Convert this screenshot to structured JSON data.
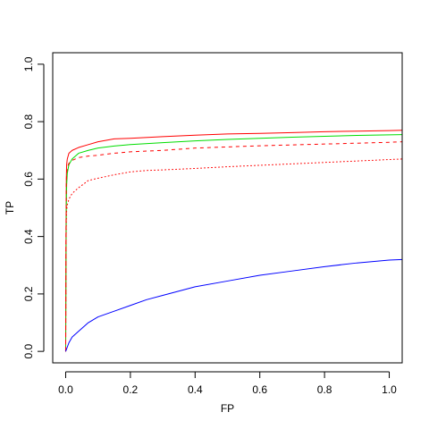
{
  "chart_data": {
    "type": "line",
    "title": "",
    "xlabel": "FP",
    "ylabel": "TP",
    "xlim": [
      -0.04,
      1.04
    ],
    "ylim": [
      -0.04,
      1.04
    ],
    "x_ticks": [
      "0.0",
      "0.2",
      "0.4",
      "0.6",
      "0.8",
      "1.0"
    ],
    "y_ticks": [
      "0.0",
      "0.2",
      "0.4",
      "0.6",
      "0.8",
      "1.0"
    ],
    "x_tick_values": [
      0,
      0.2,
      0.4,
      0.6,
      0.8,
      1.0
    ],
    "y_tick_values": [
      0,
      0.2,
      0.4,
      0.6,
      0.8,
      1.0
    ],
    "grid": false,
    "legend": "none",
    "series": [
      {
        "color": "#ff0000",
        "line_style": "solid",
        "x": [
          0.0,
          0.001,
          0.002,
          0.003,
          0.005,
          0.01,
          0.02,
          0.04,
          0.07,
          0.1,
          0.15,
          0.2,
          0.3,
          0.4,
          0.5,
          0.6,
          0.7,
          0.8,
          0.9,
          1.0,
          1.04
        ],
        "y": [
          0.0,
          0.4,
          0.6,
          0.65,
          0.67,
          0.69,
          0.7,
          0.71,
          0.72,
          0.73,
          0.74,
          0.742,
          0.748,
          0.753,
          0.757,
          0.759,
          0.762,
          0.765,
          0.767,
          0.769,
          0.77
        ]
      },
      {
        "color": "#00dd00",
        "line_style": "solid",
        "x": [
          0.0,
          0.001,
          0.002,
          0.003,
          0.005,
          0.01,
          0.02,
          0.04,
          0.07,
          0.1,
          0.15,
          0.2,
          0.3,
          0.4,
          0.5,
          0.6,
          0.7,
          0.8,
          0.9,
          1.0,
          1.04
        ],
        "y": [
          0.0,
          0.3,
          0.5,
          0.58,
          0.62,
          0.65,
          0.67,
          0.69,
          0.7,
          0.708,
          0.715,
          0.72,
          0.727,
          0.733,
          0.738,
          0.742,
          0.746,
          0.749,
          0.752,
          0.754,
          0.755
        ]
      },
      {
        "color": "#ff0000",
        "line_style": "dashed",
        "x": [
          0.0,
          0.001,
          0.002,
          0.003,
          0.005,
          0.01,
          0.02,
          0.04,
          0.07,
          0.1,
          0.15,
          0.2,
          0.3,
          0.4,
          0.5,
          0.6,
          0.7,
          0.8,
          0.9,
          1.0,
          1.04
        ],
        "y": [
          0.0,
          0.4,
          0.58,
          0.62,
          0.64,
          0.655,
          0.665,
          0.675,
          0.68,
          0.683,
          0.69,
          0.695,
          0.7,
          0.708,
          0.712,
          0.716,
          0.719,
          0.722,
          0.725,
          0.728,
          0.73
        ]
      },
      {
        "color": "#ff0000",
        "line_style": "dotted",
        "x": [
          0.0,
          0.001,
          0.002,
          0.003,
          0.005,
          0.01,
          0.02,
          0.04,
          0.07,
          0.1,
          0.15,
          0.2,
          0.25,
          0.3,
          0.4,
          0.5,
          0.6,
          0.7,
          0.8,
          0.9,
          1.0,
          1.04
        ],
        "y": [
          0.0,
          0.35,
          0.45,
          0.49,
          0.51,
          0.53,
          0.55,
          0.57,
          0.595,
          0.603,
          0.615,
          0.625,
          0.63,
          0.632,
          0.637,
          0.643,
          0.648,
          0.653,
          0.658,
          0.663,
          0.668,
          0.67
        ]
      },
      {
        "color": "#0000ff",
        "line_style": "solid",
        "x": [
          0.0,
          0.005,
          0.01,
          0.02,
          0.04,
          0.07,
          0.1,
          0.15,
          0.2,
          0.25,
          0.3,
          0.4,
          0.5,
          0.6,
          0.7,
          0.8,
          0.9,
          1.0,
          1.04
        ],
        "y": [
          0.0,
          0.015,
          0.03,
          0.05,
          0.07,
          0.1,
          0.12,
          0.14,
          0.16,
          0.18,
          0.195,
          0.225,
          0.245,
          0.265,
          0.28,
          0.295,
          0.308,
          0.318,
          0.32
        ]
      }
    ]
  }
}
